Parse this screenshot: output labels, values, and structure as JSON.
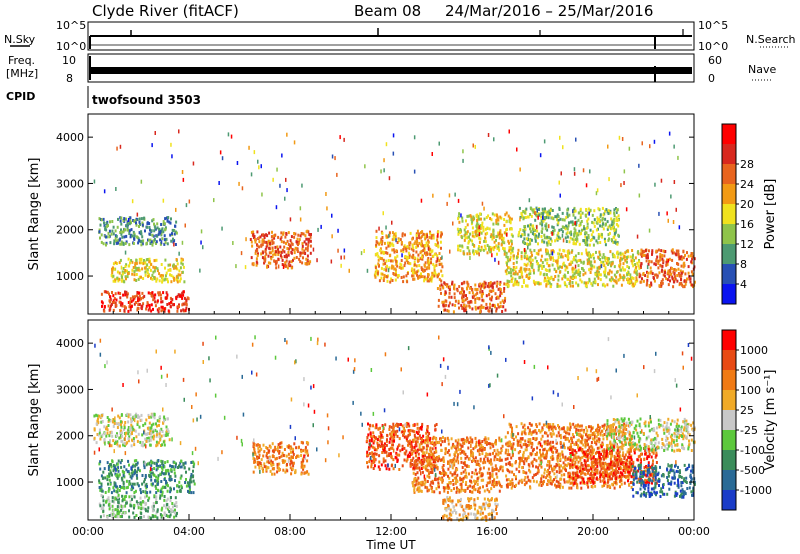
{
  "header": {
    "station": "Clyde River (fitACF)",
    "beam": "Beam 08",
    "date_range": "24/Mar/2016 – 25/Mar/2016"
  },
  "top_panels": {
    "nsky_label": "N.Sky",
    "nsearch_label": "N.Search",
    "freq_label_1": "Freq.",
    "freq_label_2": "[MHz]",
    "nave_label": "Nave",
    "cpid_label": "CPID",
    "cpid_value": "twofsound 3503",
    "nsky_ticks": [
      "10^5",
      "10^0"
    ],
    "nsearch_ticks": [
      "10^5",
      "10^0"
    ],
    "freq_ticks": [
      "10",
      "8"
    ],
    "nave_ticks": [
      "60",
      "0"
    ]
  },
  "chart_data": [
    {
      "type": "heatmap",
      "name": "power",
      "ylabel": "Slant Range [km]",
      "xlabel": "Time UT",
      "x_tick_labels": [
        "00:00",
        "04:00",
        "08:00",
        "12:00",
        "16:00",
        "20:00",
        "00:00"
      ],
      "x_range_hours": [
        0,
        24
      ],
      "ylim_km": [
        180,
        4500
      ],
      "y_ticks": [
        1000,
        2000,
        3000,
        4000
      ],
      "colorbar_label": "Power [dB]",
      "colorbar_ticks": [
        "4",
        "8",
        "12",
        "16",
        "20",
        "24",
        "28"
      ],
      "colorbar_colors": [
        "#0a14f0",
        "#2850b4",
        "#4d9a72",
        "#8fc44a",
        "#f0e21e",
        "#f29a14",
        "#e8641e",
        "#d8281e",
        "#ff0000"
      ],
      "regions": [
        {
          "t0": 0.5,
          "t1": 4.0,
          "r0": 250,
          "r1": 700,
          "level": 7
        },
        {
          "t0": 0.9,
          "t1": 3.8,
          "r0": 900,
          "r1": 1400,
          "level": 4
        },
        {
          "t0": 0.4,
          "t1": 3.5,
          "r0": 1700,
          "r1": 2300,
          "level": 2
        },
        {
          "t0": 6.4,
          "t1": 8.8,
          "r0": 1200,
          "r1": 2000,
          "level": 6
        },
        {
          "t0": 11.3,
          "t1": 14.0,
          "r0": 900,
          "r1": 2000,
          "level": 5
        },
        {
          "t0": 13.8,
          "t1": 16.5,
          "r0": 250,
          "r1": 900,
          "level": 6
        },
        {
          "t0": 14.6,
          "t1": 16.8,
          "r0": 1500,
          "r1": 2400,
          "level": 4
        },
        {
          "t0": 16.5,
          "t1": 21.8,
          "r0": 800,
          "r1": 1600,
          "level": 4
        },
        {
          "t0": 17.0,
          "t1": 21.0,
          "r0": 1700,
          "r1": 2500,
          "level": 3
        },
        {
          "t0": 21.8,
          "t1": 24.0,
          "r0": 800,
          "r1": 1600,
          "level": 6
        }
      ]
    },
    {
      "type": "heatmap",
      "name": "velocity",
      "ylabel": "Slant Range [km]",
      "xlabel": "Time UT",
      "x_tick_labels": [
        "00:00",
        "04:00",
        "08:00",
        "12:00",
        "16:00",
        "20:00",
        "00:00"
      ],
      "x_range_hours": [
        0,
        24
      ],
      "ylim_km": [
        180,
        4500
      ],
      "y_ticks": [
        1000,
        2000,
        3000,
        4000
      ],
      "colorbar_label": "Velocity [m s⁻¹]",
      "colorbar_ticks": [
        "1000",
        "500",
        "100",
        "25",
        "-25",
        "-100",
        "-500",
        "-1000"
      ],
      "colorbar_colors": [
        "#1a3cc8",
        "#2a6a96",
        "#3a8c5a",
        "#5cc83c",
        "#c8c8c8",
        "#f0aa28",
        "#f07a14",
        "#e84a14",
        "#ff0000"
      ],
      "regions": [
        {
          "t0": 0.2,
          "t1": 3.2,
          "r0": 1800,
          "r1": 2500,
          "level": 4
        },
        {
          "t0": 0.4,
          "t1": 4.2,
          "r0": 800,
          "r1": 1500,
          "level": 2
        },
        {
          "t0": 0.4,
          "t1": 3.5,
          "r0": 250,
          "r1": 750,
          "level": 3
        },
        {
          "t0": 6.5,
          "t1": 8.7,
          "r0": 1200,
          "r1": 1900,
          "level": 6
        },
        {
          "t0": 11.0,
          "t1": 13.8,
          "r0": 1300,
          "r1": 2300,
          "level": 7
        },
        {
          "t0": 12.8,
          "t1": 16.4,
          "r0": 800,
          "r1": 2000,
          "level": 6
        },
        {
          "t0": 14.0,
          "t1": 16.2,
          "r0": 200,
          "r1": 700,
          "level": 5
        },
        {
          "t0": 16.5,
          "t1": 21.5,
          "r0": 900,
          "r1": 2300,
          "level": 6
        },
        {
          "t0": 19.0,
          "t1": 22.5,
          "r0": 1000,
          "r1": 1800,
          "level": 7
        },
        {
          "t0": 20.5,
          "t1": 24.0,
          "r0": 1700,
          "r1": 2400,
          "level": 4
        },
        {
          "t0": 21.5,
          "t1": 24.0,
          "r0": 700,
          "r1": 1400,
          "level": 1
        }
      ]
    }
  ]
}
